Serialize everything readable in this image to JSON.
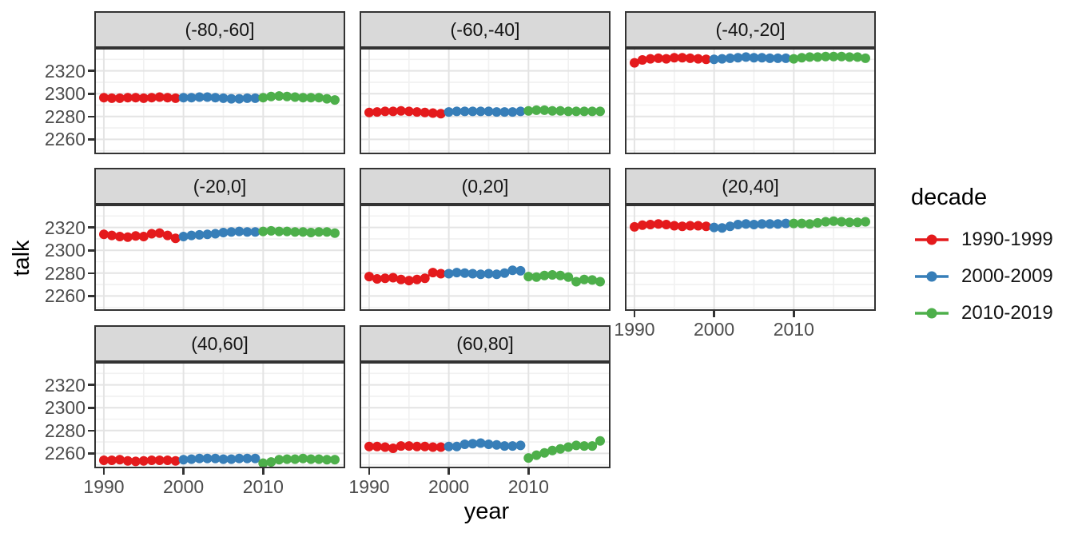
{
  "chart_data": {
    "type": "scatter",
    "title": "",
    "xlabel": "year",
    "ylabel": "talk",
    "legend_title": "decade",
    "legend_position": "right",
    "grid": true,
    "facet_layout": "3 columns x 3 rows, 8 panels",
    "x_ticks": {
      "values": [
        1990,
        2000,
        2010
      ],
      "labels": [
        "1990",
        "2000",
        "2010"
      ],
      "minor": [
        1995,
        2005,
        2015
      ]
    },
    "y_ticks": {
      "values": [
        2320,
        2300,
        2280,
        2260
      ],
      "labels": [
        "2320",
        "2300",
        "2280",
        "2260"
      ],
      "minor": [
        2250,
        2270,
        2290,
        2310,
        2330
      ]
    },
    "xlim": [
      1988.8,
      2020.3
    ],
    "ylim": [
      2247,
      2340
    ],
    "decades": [
      {
        "name": "1990-1999",
        "color": "#E41A1C",
        "start_year": 1990
      },
      {
        "name": "2000-2009",
        "color": "#377EB8",
        "start_year": 2000
      },
      {
        "name": "2010-2019",
        "color": "#4DAF4A",
        "start_year": 2010
      }
    ],
    "facets": [
      {
        "label": "(-80,-60]",
        "series": [
          {
            "decade": "1990-1999",
            "values": [
              2296.5,
              2296,
              2296,
              2296.5,
              2296.5,
              2296,
              2296.5,
              2297,
              2296.5,
              2296
            ]
          },
          {
            "decade": "2000-2009",
            "values": [
              2296.5,
              2296.5,
              2297,
              2297,
              2296.5,
              2296,
              2295.5,
              2295.5,
              2296,
              2296
            ]
          },
          {
            "decade": "2010-2019",
            "values": [
              2296.5,
              2297.5,
              2298,
              2297.5,
              2297,
              2296.5,
              2296.5,
              2296.5,
              2295.5,
              2294.5
            ]
          }
        ]
      },
      {
        "label": "(-60,-40]",
        "series": [
          {
            "decade": "1990-1999",
            "values": [
              2283.5,
              2284,
              2284.5,
              2284.5,
              2285,
              2284.5,
              2284,
              2283.5,
              2283,
              2282.5
            ]
          },
          {
            "decade": "2000-2009",
            "values": [
              2284,
              2284.5,
              2284.5,
              2284.5,
              2284.5,
              2284.5,
              2284,
              2284,
              2284,
              2284.5
            ]
          },
          {
            "decade": "2010-2019",
            "values": [
              2285,
              2285.5,
              2285.5,
              2285,
              2285,
              2284.5,
              2284.5,
              2284.5,
              2284.5,
              2284.5
            ]
          }
        ]
      },
      {
        "label": "(-40,-20]",
        "series": [
          {
            "decade": "1990-1999",
            "values": [
              2327,
              2329.5,
              2330.5,
              2331,
              2330.5,
              2331.5,
              2331.5,
              2331,
              2330.5,
              2330
            ]
          },
          {
            "decade": "2000-2009",
            "values": [
              2330,
              2330.5,
              2331,
              2331.5,
              2332,
              2331.5,
              2331.5,
              2331,
              2331,
              2331
            ]
          },
          {
            "decade": "2010-2019",
            "values": [
              2330.5,
              2331.5,
              2332,
              2332,
              2332.5,
              2332.5,
              2332.5,
              2332,
              2332,
              2331
            ]
          }
        ]
      },
      {
        "label": "(-20,0]",
        "series": [
          {
            "decade": "1990-1999",
            "values": [
              2314,
              2313,
              2312,
              2311.5,
              2312.5,
              2312,
              2314.5,
              2315,
              2313,
              2310.5
            ]
          },
          {
            "decade": "2000-2009",
            "values": [
              2312,
              2313,
              2313.5,
              2314,
              2314.5,
              2315.5,
              2316,
              2316.5,
              2316,
              2316
            ]
          },
          {
            "decade": "2010-2019",
            "values": [
              2316.5,
              2317,
              2316.5,
              2316.5,
              2316,
              2316,
              2315.5,
              2316,
              2316,
              2315
            ]
          }
        ]
      },
      {
        "label": "(0,20]",
        "series": [
          {
            "decade": "1990-1999",
            "values": [
              2277,
              2275,
              2275.5,
              2276,
              2274.5,
              2273.5,
              2274.5,
              2275.5,
              2280.5,
              2279.5
            ]
          },
          {
            "decade": "2000-2009",
            "values": [
              2279.5,
              2280.5,
              2280,
              2279.5,
              2279,
              2279.5,
              2279,
              2280,
              2282.5,
              2282
            ]
          },
          {
            "decade": "2010-2019",
            "values": [
              2277,
              2276.5,
              2278,
              2278.5,
              2278,
              2276.5,
              2272.5,
              2274.5,
              2274,
              2272.5
            ]
          }
        ]
      },
      {
        "label": "(20,40]",
        "series": [
          {
            "decade": "1990-1999",
            "values": [
              2320.5,
              2322,
              2322.5,
              2323,
              2322.5,
              2321.5,
              2321,
              2321.5,
              2321.5,
              2321
            ]
          },
          {
            "decade": "2000-2009",
            "values": [
              2320,
              2319.5,
              2321,
              2322.5,
              2323,
              2322.5,
              2323,
              2323,
              2323,
              2323.5
            ]
          },
          {
            "decade": "2010-2019",
            "values": [
              2323.5,
              2323.5,
              2323,
              2324,
              2325,
              2325.5,
              2325,
              2324.5,
              2324.5,
              2325
            ]
          }
        ]
      },
      {
        "label": "(40,60]",
        "series": [
          {
            "decade": "1990-1999",
            "values": [
              2254,
              2254,
              2254.5,
              2253.5,
              2253,
              2253.5,
              2254,
              2254,
              2254,
              2253.5
            ]
          },
          {
            "decade": "2000-2009",
            "values": [
              2254.5,
              2255,
              2255.5,
              2255.5,
              2255.5,
              2255,
              2255,
              2255.5,
              2255.5,
              2255.5
            ]
          },
          {
            "decade": "2010-2019",
            "values": [
              2251.5,
              2252.5,
              2254.5,
              2255,
              2255,
              2255.5,
              2255,
              2255,
              2254.5,
              2254.5
            ]
          }
        ]
      },
      {
        "label": "(60,80]",
        "series": [
          {
            "decade": "1990-1999",
            "values": [
              2266,
              2266,
              2265.5,
              2264.5,
              2266.5,
              2266.5,
              2266,
              2266,
              2265.5,
              2265.5
            ]
          },
          {
            "decade": "2000-2009",
            "values": [
              2266,
              2266,
              2268,
              2268.5,
              2269,
              2268,
              2267.5,
              2266.5,
              2266.5,
              2267
            ]
          },
          {
            "decade": "2010-2019",
            "values": [
              2256,
              2258.5,
              2260.5,
              2262.5,
              2264,
              2265.5,
              2267,
              2266.5,
              2266.5,
              2271
            ]
          }
        ]
      }
    ]
  },
  "style": {
    "strip_fill": "#d9d9d9",
    "panel_border": "#333333",
    "grid_major": "#e4e4e4",
    "grid_minor": "#f1f1f1",
    "tick_text": "#4d4d4d"
  }
}
